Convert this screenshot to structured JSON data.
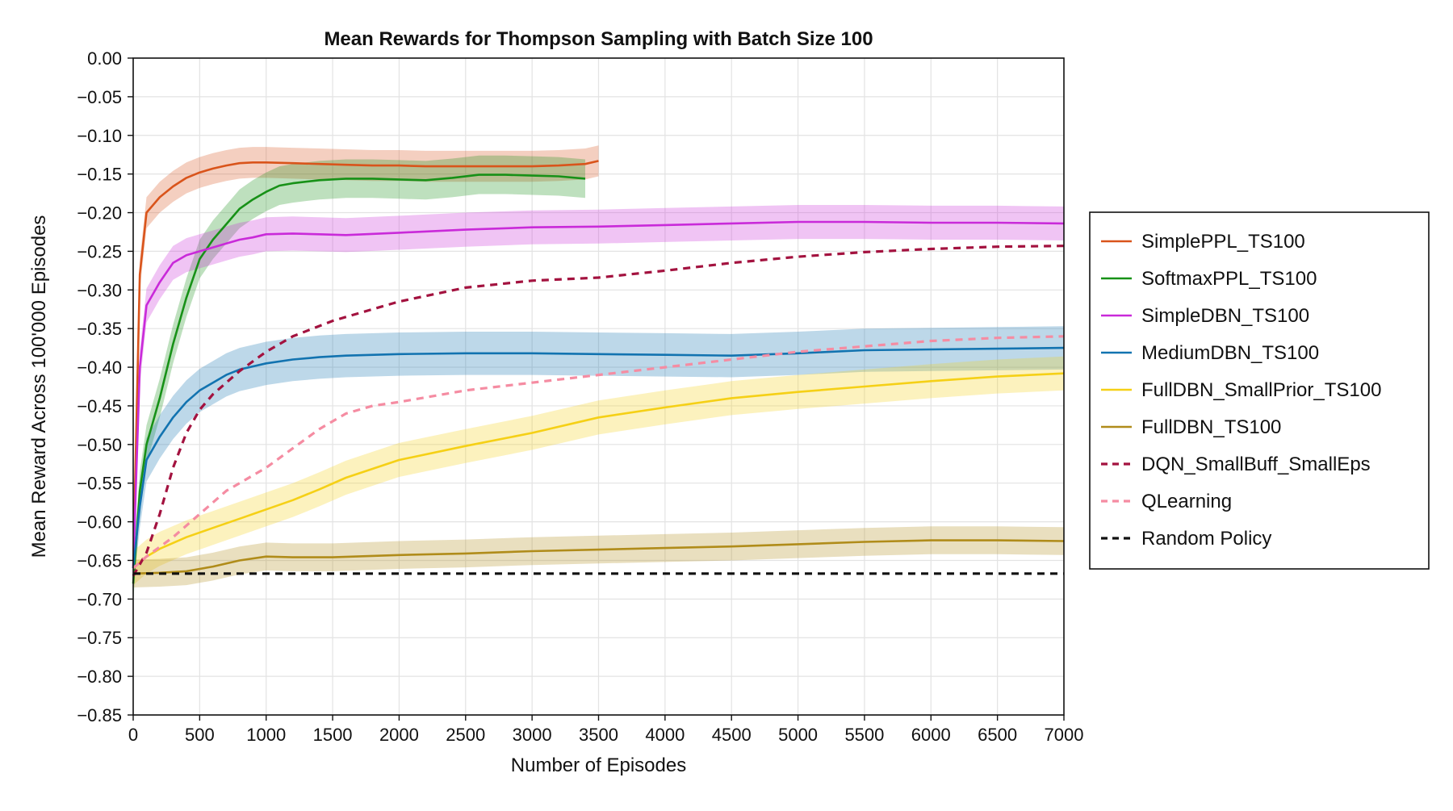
{
  "chart_data": {
    "type": "line",
    "title": "Mean Rewards for Thompson Sampling with Batch Size 100",
    "xlabel": "Number of Episodes",
    "ylabel": "Mean Reward Across 100'000 Episodes",
    "xlim": [
      0,
      7000
    ],
    "ylim": [
      -0.85,
      0.0
    ],
    "x_ticks": [
      0,
      500,
      1000,
      1500,
      2000,
      2500,
      3000,
      3500,
      4000,
      4500,
      5000,
      5500,
      6000,
      6500,
      7000
    ],
    "y_ticks": [
      0.0,
      -0.05,
      -0.1,
      -0.15,
      -0.2,
      -0.25,
      -0.3,
      -0.35,
      -0.4,
      -0.45,
      -0.5,
      -0.55,
      -0.6,
      -0.65,
      -0.7,
      -0.75,
      -0.8,
      -0.85
    ],
    "grid": true,
    "legend_position": "right",
    "series": [
      {
        "name": "SimplePPL_TS100",
        "color": "#d9541b",
        "dash": false,
        "band": 0.02,
        "x": [
          0,
          50,
          100,
          200,
          300,
          400,
          500,
          600,
          700,
          800,
          900,
          1000,
          1200,
          1400,
          1600,
          1800,
          2000,
          2200,
          2400,
          2600,
          2800,
          3000,
          3200,
          3400,
          3500
        ],
        "y": [
          -0.66,
          -0.28,
          -0.2,
          -0.18,
          -0.166,
          -0.155,
          -0.148,
          -0.143,
          -0.139,
          -0.136,
          -0.135,
          -0.135,
          -0.136,
          -0.137,
          -0.138,
          -0.139,
          -0.139,
          -0.14,
          -0.14,
          -0.14,
          -0.14,
          -0.14,
          -0.139,
          -0.137,
          -0.133
        ]
      },
      {
        "name": "SoftmaxPPL_TS100",
        "color": "#179117",
        "dash": false,
        "band": 0.025,
        "x": [
          0,
          50,
          100,
          200,
          300,
          400,
          500,
          600,
          700,
          800,
          900,
          1000,
          1100,
          1200,
          1400,
          1600,
          1800,
          2000,
          2200,
          2400,
          2600,
          2800,
          3000,
          3200,
          3400
        ],
        "y": [
          -0.68,
          -0.56,
          -0.5,
          -0.44,
          -0.37,
          -0.31,
          -0.26,
          -0.235,
          -0.215,
          -0.195,
          -0.183,
          -0.173,
          -0.165,
          -0.162,
          -0.158,
          -0.156,
          -0.156,
          -0.157,
          -0.158,
          -0.155,
          -0.151,
          -0.151,
          -0.152,
          -0.153,
          -0.156
        ]
      },
      {
        "name": "SimpleDBN_TS100",
        "color": "#c92ad9",
        "dash": false,
        "band": 0.022,
        "x": [
          0,
          50,
          100,
          200,
          300,
          400,
          500,
          600,
          700,
          800,
          900,
          1000,
          1200,
          1400,
          1600,
          2000,
          2500,
          3000,
          3500,
          4000,
          4500,
          5000,
          5500,
          6000,
          6500,
          7000
        ],
        "y": [
          -0.66,
          -0.4,
          -0.32,
          -0.29,
          -0.265,
          -0.255,
          -0.25,
          -0.245,
          -0.24,
          -0.235,
          -0.232,
          -0.228,
          -0.227,
          -0.228,
          -0.229,
          -0.226,
          -0.222,
          -0.219,
          -0.218,
          -0.216,
          -0.214,
          -0.212,
          -0.212,
          -0.213,
          -0.213,
          -0.214
        ]
      },
      {
        "name": "MediumDBN_TS100",
        "color": "#1273b0",
        "dash": false,
        "band": 0.028,
        "x": [
          0,
          50,
          100,
          200,
          300,
          400,
          500,
          600,
          700,
          800,
          1000,
          1200,
          1400,
          1600,
          2000,
          2500,
          3000,
          3500,
          4000,
          4500,
          5000,
          5500,
          6000,
          6500,
          7000
        ],
        "y": [
          -0.66,
          -0.58,
          -0.52,
          -0.49,
          -0.465,
          -0.445,
          -0.43,
          -0.42,
          -0.41,
          -0.403,
          -0.395,
          -0.39,
          -0.387,
          -0.385,
          -0.383,
          -0.382,
          -0.382,
          -0.383,
          -0.384,
          -0.385,
          -0.382,
          -0.378,
          -0.377,
          -0.376,
          -0.375
        ]
      },
      {
        "name": "FullDBN_SmallPrior_TS100",
        "color": "#f5d016",
        "dash": false,
        "band": 0.022,
        "x": [
          0,
          100,
          200,
          400,
          600,
          800,
          1000,
          1200,
          1400,
          1600,
          2000,
          2500,
          3000,
          3500,
          4000,
          4500,
          5000,
          5500,
          6000,
          6500,
          7000
        ],
        "y": [
          -0.66,
          -0.645,
          -0.635,
          -0.62,
          -0.608,
          -0.596,
          -0.584,
          -0.572,
          -0.558,
          -0.543,
          -0.52,
          -0.502,
          -0.485,
          -0.465,
          -0.452,
          -0.44,
          -0.432,
          -0.425,
          -0.418,
          -0.412,
          -0.408
        ]
      },
      {
        "name": "FullDBN_TS100",
        "color": "#b08c1a",
        "dash": false,
        "band": 0.018,
        "x": [
          0,
          200,
          400,
          600,
          800,
          1000,
          1200,
          1500,
          2000,
          2500,
          3000,
          3500,
          4000,
          4500,
          5000,
          5500,
          6000,
          6500,
          7000
        ],
        "y": [
          -0.667,
          -0.666,
          -0.664,
          -0.658,
          -0.65,
          -0.645,
          -0.646,
          -0.646,
          -0.643,
          -0.641,
          -0.638,
          -0.636,
          -0.634,
          -0.632,
          -0.629,
          -0.626,
          -0.624,
          -0.624,
          -0.625
        ]
      },
      {
        "name": "DQN_SmallBuff_SmallEps",
        "color": "#a3123f",
        "dash": true,
        "band": 0,
        "x": [
          0,
          100,
          200,
          300,
          400,
          500,
          600,
          800,
          1000,
          1200,
          1500,
          1800,
          2000,
          2500,
          3000,
          3500,
          4000,
          4500,
          5000,
          5500,
          6000,
          6500,
          7000
        ],
        "y": [
          -0.67,
          -0.64,
          -0.59,
          -0.53,
          -0.485,
          -0.455,
          -0.435,
          -0.405,
          -0.38,
          -0.36,
          -0.34,
          -0.325,
          -0.315,
          -0.297,
          -0.288,
          -0.284,
          -0.275,
          -0.265,
          -0.257,
          -0.251,
          -0.247,
          -0.244,
          -0.243
        ]
      },
      {
        "name": "QLearning",
        "color": "#f58ca2",
        "dash": true,
        "band": 0,
        "x": [
          0,
          100,
          300,
          500,
          700,
          1000,
          1200,
          1400,
          1600,
          1800,
          2000,
          2500,
          3000,
          3500,
          4000,
          4500,
          5000,
          5500,
          6000,
          6500,
          7000
        ],
        "y": [
          -0.66,
          -0.645,
          -0.62,
          -0.59,
          -0.56,
          -0.53,
          -0.505,
          -0.48,
          -0.46,
          -0.45,
          -0.445,
          -0.43,
          -0.42,
          -0.41,
          -0.4,
          -0.39,
          -0.38,
          -0.373,
          -0.366,
          -0.362,
          -0.36
        ]
      },
      {
        "name": "Random Policy",
        "color": "#111111",
        "dash": true,
        "band": 0,
        "x": [
          0,
          7000
        ],
        "y": [
          -0.667,
          -0.667
        ]
      }
    ]
  }
}
